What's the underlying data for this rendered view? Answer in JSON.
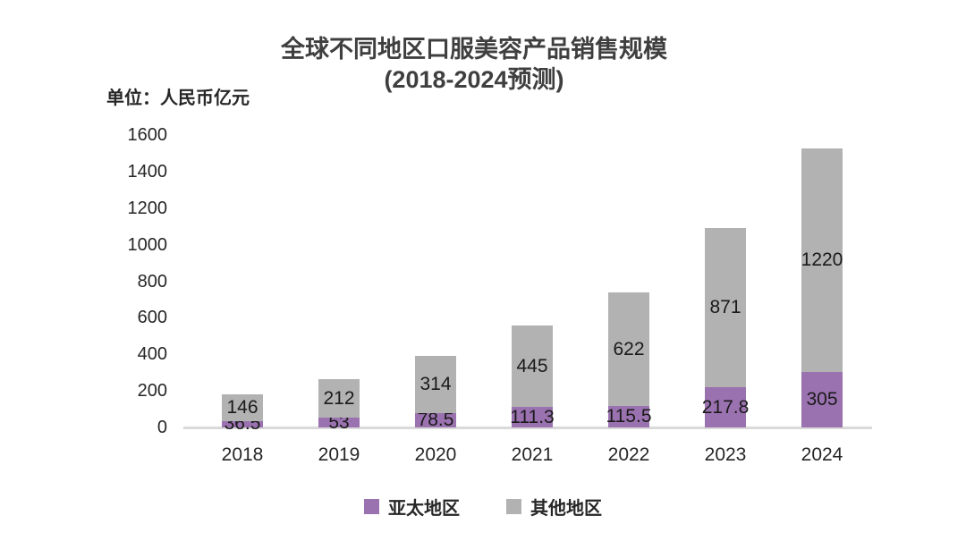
{
  "title": {
    "line1": "全球不同地区口服美容产品销售规模",
    "line2": "(2018-2024预测)"
  },
  "unit_label": "单位：人民币亿元",
  "chart_data": {
    "type": "bar",
    "stacked": true,
    "title": "全球不同地区口服美容产品销售规模 (2018-2024预测)",
    "ylabel": "单位：人民币亿元",
    "xlabel": "",
    "categories": [
      "2018",
      "2019",
      "2020",
      "2021",
      "2022",
      "2023",
      "2024"
    ],
    "series": [
      {
        "name": "亚太地区",
        "color": "#9b72b0",
        "values": [
          36.5,
          53,
          78.5,
          111.3,
          115.5,
          217.8,
          305
        ]
      },
      {
        "name": "其他地区",
        "color": "#b2b2b2",
        "values": [
          146,
          212,
          314,
          445,
          622,
          871,
          1220
        ]
      }
    ],
    "data_labels": [
      [
        "36.5",
        "53",
        "78.5",
        "111.3",
        "115.5",
        "217.8",
        "305"
      ],
      [
        "146",
        "212",
        "314",
        "445",
        "622",
        "871",
        "1220"
      ]
    ],
    "ylim": [
      0,
      1600
    ],
    "yticks": [
      0,
      200,
      400,
      600,
      800,
      1000,
      1200,
      1400,
      1600
    ],
    "grid": false,
    "legend_position": "bottom",
    "axis_line_color": "#d9d9d9",
    "label_color": "#1a1a1a",
    "title_color": "#3f3f3f",
    "background_color": "#ffffff"
  }
}
